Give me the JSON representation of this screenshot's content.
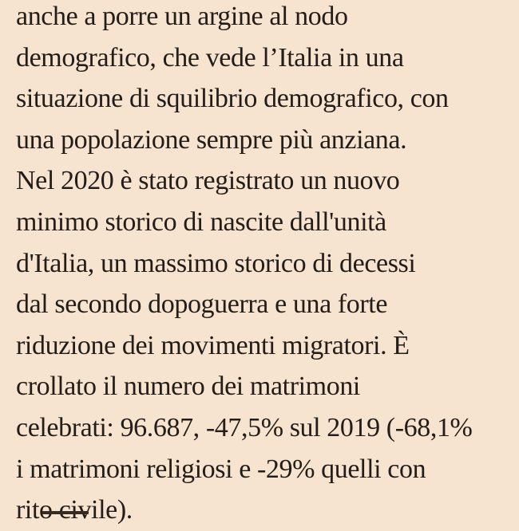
{
  "colors": {
    "background": "#f6e3d0",
    "text": "#241d17",
    "cutoff": "#342b24"
  },
  "article": {
    "language": "it",
    "lines": [
      "anche a porre un argine al nodo",
      "demografico, che vede l’Italia in una",
      "situazione di squilibrio demografico, con",
      "una popolazione sempre più anziana.",
      "Nel 2020 è stato registrato un nuovo",
      "minimo storico di nascite dall'unità",
      "d'Italia, un massimo storico di decessi",
      "dal secondo dopoguerra e una forte",
      "riduzione dei movimenti migratori. È",
      "crollato il numero dei matrimoni",
      "celebrati: 96.687, -47,5% sul 2019 (-68,1%",
      "i matrimoni religiosi e -29% quelli con",
      "rito civile)."
    ],
    "stats": {
      "marriages_2020": "96.687",
      "marriages_change_vs_2019": "-47,5%",
      "religious_marriages_change": "-68,1%",
      "civil_rite_marriages_change": "-29%"
    }
  },
  "bottom_cutoff": {
    "description": "top edge of next content cut off by viewport"
  }
}
